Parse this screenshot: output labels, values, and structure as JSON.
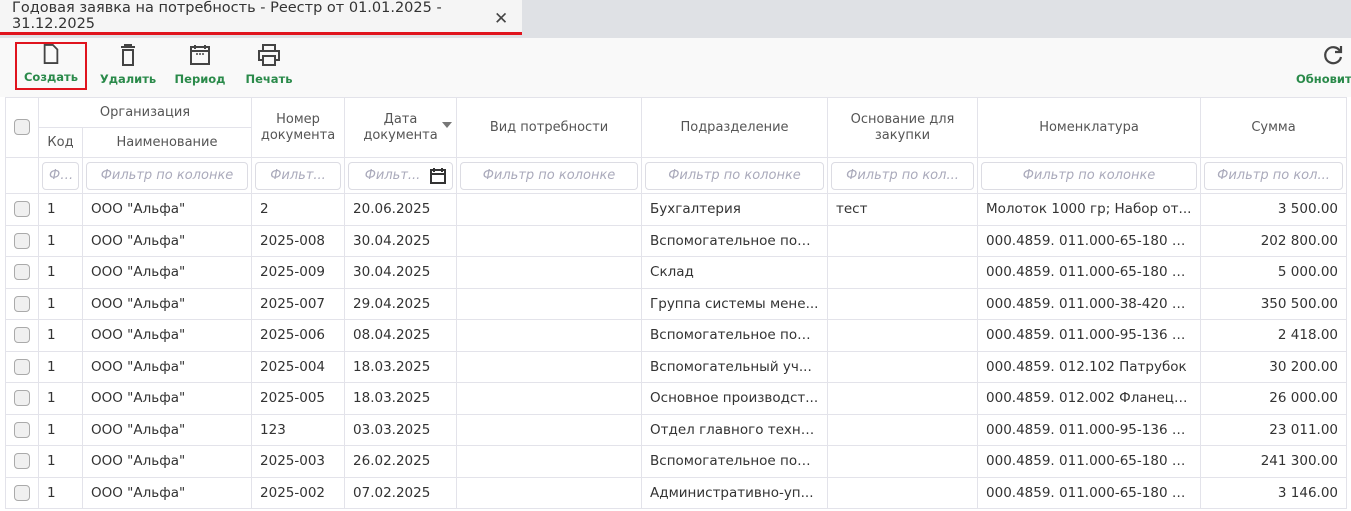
{
  "tab": {
    "title": "Годовая заявка на потребность - Реестр от 01.01.2025 - 31.12.2025",
    "close": "✕"
  },
  "toolbar": {
    "create": "Создать",
    "delete": "Удалить",
    "period": "Период",
    "print": "Печать",
    "refresh": "Обновить"
  },
  "colors": {
    "accent": "#e0141e",
    "label_green": "#2a8a4a"
  },
  "headers": {
    "org": "Организация",
    "code": "Код",
    "name": "Наименование",
    "docnum": "Номер документа",
    "docdate": "Дата документа",
    "need": "Вид потребности",
    "dept": "Подразделение",
    "basis": "Основание для закупки",
    "nomen": "Номенклатура",
    "sum": "Сумма"
  },
  "filters": {
    "code": "Ф...",
    "name": "Фильтр по колонке",
    "docnum": "Фильт...",
    "docdate": "Фильт...",
    "need": "Фильтр по колонке",
    "dept": "Фильтр по колонке",
    "basis": "Фильтр по кол...",
    "nomen": "Фильтр по колонке",
    "sum": "Фильтр по кол..."
  },
  "rows": [
    [
      "1",
      "ООО \"Альфа\"",
      "2",
      "20.06.2025",
      "",
      "Бухгалтерия",
      "тест",
      "Молоток 1000 гр; Набор от...",
      "3 500.00"
    ],
    [
      "1",
      "ООО \"Альфа\"",
      "2025-008",
      "30.04.2025",
      "",
      "Вспомогательное под...",
      "",
      "000.4859. 011.000-65-180 М...",
      "202 800.00"
    ],
    [
      "1",
      "ООО \"Альфа\"",
      "2025-009",
      "30.04.2025",
      "",
      "Склад",
      "",
      "000.4859. 011.000-65-180 М...",
      "5 000.00"
    ],
    [
      "1",
      "ООО \"Альфа\"",
      "2025-007",
      "29.04.2025",
      "",
      "Группа системы мене...",
      "",
      "000.4859. 011.000-38-420 М...",
      "350 500.00"
    ],
    [
      "1",
      "ООО \"Альфа\"",
      "2025-006",
      "08.04.2025",
      "",
      "Вспомогательное под...",
      "",
      "000.4859. 011.000-95-136 М...",
      "2 418.00"
    ],
    [
      "1",
      "ООО \"Альфа\"",
      "2025-004",
      "18.03.2025",
      "",
      "Вспомогательный уч...",
      "",
      "000.4859. 012.102 Патрубок",
      "30 200.00"
    ],
    [
      "1",
      "ООО \"Альфа\"",
      "2025-005",
      "18.03.2025",
      "",
      "Основное производст...",
      "",
      "000.4859. 012.002 Фланец; ...",
      "26 000.00"
    ],
    [
      "1",
      "ООО \"Альфа\"",
      "123",
      "03.03.2025",
      "",
      "Отдел главного техно...",
      "",
      "000.4859. 011.000-95-136 М...",
      "23 011.00"
    ],
    [
      "1",
      "ООО \"Альфа\"",
      "2025-003",
      "26.02.2025",
      "",
      "Вспомогательное под...",
      "",
      "000.4859. 011.000-65-180 М...",
      "241 300.00"
    ],
    [
      "1",
      "ООО \"Альфа\"",
      "2025-002",
      "07.02.2025",
      "",
      "Административно-уп...",
      "",
      "000.4859. 011.000-65-180 М...",
      "3 146.00"
    ]
  ]
}
